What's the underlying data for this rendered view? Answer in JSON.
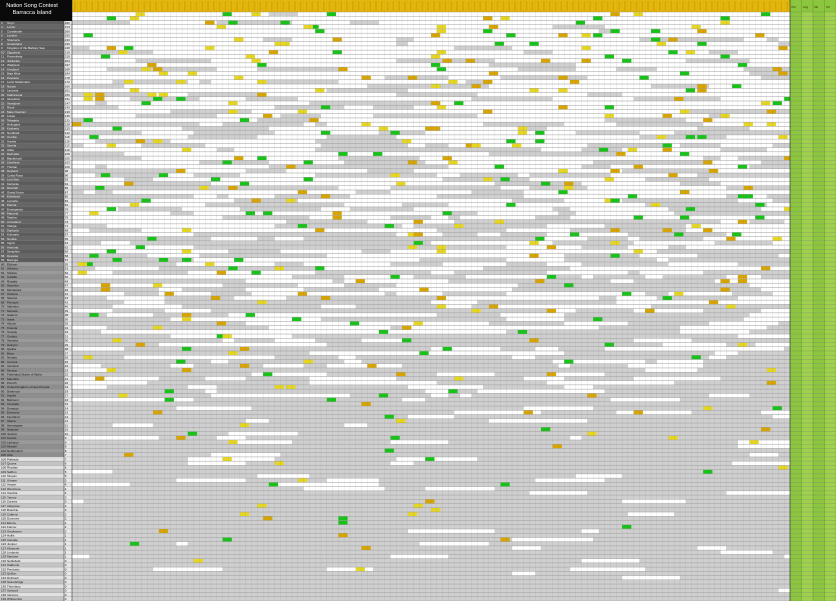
{
  "title": {
    "line1": "Nation Song Contest",
    "line2": "Barracca Island"
  },
  "header_corner": "",
  "colors": {
    "header_gold": "#e7b80c",
    "header_gold_dark": "#c99a00",
    "rank_gold": "#d7a400",
    "rank_yellow": "#e6d61f",
    "rank_green": "#19c219",
    "totals_green": "#8cc63f",
    "row_dark": "#5c5c5c",
    "row_mid": "#8e8e8e",
    "row_light": "#c4c4c4",
    "row_pale": "#e1e1e1",
    "grid_line": "#6f6f6f"
  },
  "totals_columns": [
    "Pts",
    "Avg",
    "Rk",
    "Tot"
  ],
  "rows": [
    {
      "rank": "1",
      "name": "Gami",
      "score": "302"
    },
    {
      "rank": "2",
      "name": "Lumpus",
      "score": "297"
    },
    {
      "rank": "3",
      "name": "Teryn",
      "score": "282"
    },
    {
      "rank": "4",
      "name": "Lunbo",
      "score": "274"
    },
    {
      "rank": "5",
      "name": "Crowlander",
      "score": "266"
    },
    {
      "rank": "6",
      "name": "Lazeria",
      "score": "255"
    },
    {
      "rank": "7",
      "name": "Sharkeria",
      "score": "243"
    },
    {
      "rank": "8",
      "name": "Greiterland",
      "score": "236"
    },
    {
      "rank": "9",
      "name": "Kingdom of the Barbary Sea",
      "score": "228"
    },
    {
      "rank": "10",
      "name": "Ziggoland",
      "score": "219"
    },
    {
      "rank": "11",
      "name": "Prometheia",
      "score": "210"
    },
    {
      "rank": "12",
      "name": "Jubilantia",
      "score": "203"
    },
    {
      "rank": "13",
      "name": "Wadjonia",
      "score": "197"
    },
    {
      "rank": "14",
      "name": "Amyland",
      "score": "189"
    },
    {
      "rank": "15",
      "name": "Baja Mina",
      "score": "184"
    },
    {
      "rank": "16",
      "name": "Pescaria",
      "score": "178"
    },
    {
      "rank": "17",
      "name": "Lovis Stollamaria",
      "score": "172"
    },
    {
      "rank": "18",
      "name": "Nanza",
      "score": "166"
    },
    {
      "rank": "19",
      "name": "Lantovia",
      "score": "161"
    },
    {
      "rank": "20",
      "name": "Kadranovia",
      "score": "156"
    },
    {
      "rank": "21",
      "name": "Ainedoria",
      "score": "151"
    },
    {
      "rank": "22",
      "name": "Vazadyne",
      "score": "147"
    },
    {
      "rank": "23",
      "name": "Rivoli",
      "score": "143"
    },
    {
      "rank": "24",
      "name": "Mare Nostrum",
      "score": "139"
    },
    {
      "rank": "25",
      "name": "Lukas",
      "score": "135"
    },
    {
      "rank": "26",
      "name": "Teiwatria",
      "score": "131"
    },
    {
      "rank": "27",
      "name": "Holmgard",
      "score": "128"
    },
    {
      "rank": "28",
      "name": "Kosheria",
      "score": "125"
    },
    {
      "rank": "29",
      "name": "Nordkraft",
      "score": "122"
    },
    {
      "rank": "30",
      "name": "Cerulia",
      "score": "119"
    },
    {
      "rank": "31",
      "name": "Aurelis",
      "score": "116"
    },
    {
      "rank": "32",
      "name": "Saviria",
      "score": "113"
    },
    {
      "rank": "33",
      "name": "Oikia",
      "score": "110"
    },
    {
      "rank": "34",
      "name": "Dalmatia",
      "score": "108"
    },
    {
      "rank": "35",
      "name": "Blackbrook",
      "score": "105"
    },
    {
      "rank": "36",
      "name": "Liberland",
      "score": "103"
    },
    {
      "rank": "37",
      "name": "Thorian",
      "score": "100"
    },
    {
      "rank": "38",
      "name": "Heyland",
      "score": "98"
    },
    {
      "rank": "39",
      "name": "Costa Rosa",
      "score": "96"
    },
    {
      "rank": "40",
      "name": "Lost Sea",
      "score": "93"
    },
    {
      "rank": "41",
      "name": "Karzania",
      "score": "91"
    },
    {
      "rank": "42",
      "name": "Riverfell",
      "score": "89"
    },
    {
      "rank": "43",
      "name": "Grand Union",
      "score": "87"
    },
    {
      "rank": "44",
      "name": "Ethelwold",
      "score": "85"
    },
    {
      "rank": "45",
      "name": "Lumeria",
      "score": "83"
    },
    {
      "rank": "46",
      "name": "Peluria",
      "score": "81"
    },
    {
      "rank": "47",
      "name": "Emergensis",
      "score": "79"
    },
    {
      "rank": "48",
      "name": "Mazovia",
      "score": "77"
    },
    {
      "rank": "49",
      "name": "Tsarina",
      "score": "75"
    },
    {
      "rank": "50",
      "name": "Arrowland",
      "score": "73"
    },
    {
      "rank": "51",
      "name": "Vitarga",
      "score": "71"
    },
    {
      "rank": "52",
      "name": "Zephyria",
      "score": "69"
    },
    {
      "rank": "53",
      "name": "Kulmaria",
      "score": "67"
    },
    {
      "rank": "54",
      "name": "Norelia",
      "score": "65"
    },
    {
      "rank": "55",
      "name": "Ingrid",
      "score": "64"
    },
    {
      "rank": "56",
      "name": "Anmoria",
      "score": "62"
    },
    {
      "rank": "57",
      "name": "Seraphim",
      "score": "60"
    },
    {
      "rank": "58",
      "name": "Dovania",
      "score": "58"
    },
    {
      "rank": "59",
      "name": "Beringia",
      "score": "57"
    },
    {
      "rank": "60",
      "name": "Eldoran",
      "score": "55"
    },
    {
      "rank": "61",
      "name": "Wilderia",
      "score": "53"
    },
    {
      "rank": "62",
      "name": "Tokaria",
      "score": "52"
    },
    {
      "rank": "63",
      "name": "Castilla",
      "score": "50"
    },
    {
      "rank": "64",
      "name": "Rosalia",
      "score": "49"
    },
    {
      "rank": "65",
      "name": "Hyperion",
      "score": "47"
    },
    {
      "rank": "66",
      "name": "Montanara",
      "score": "46"
    },
    {
      "rank": "67",
      "name": "Ostrava",
      "score": "44"
    },
    {
      "rank": "68",
      "name": "Selenia",
      "score": "43"
    },
    {
      "rank": "69",
      "name": "Pinnacle",
      "score": "42"
    },
    {
      "rank": "70",
      "name": "Valendor",
      "score": "40"
    },
    {
      "rank": "71",
      "name": "Moravia",
      "score": "39"
    },
    {
      "rank": "72",
      "name": "Galenor",
      "score": "38"
    },
    {
      "rank": "73",
      "name": "Isaria",
      "score": "36"
    },
    {
      "rank": "74",
      "name": "Alcora",
      "score": "35"
    },
    {
      "rank": "75",
      "name": "Krasnia",
      "score": "34"
    },
    {
      "rank": "76",
      "name": "Tessaly",
      "score": "33"
    },
    {
      "rank": "77",
      "name": "Ombria",
      "score": "31"
    },
    {
      "rank": "78",
      "name": "Venatria",
      "score": "30"
    },
    {
      "rank": "79",
      "name": "Halcyon",
      "score": "29"
    },
    {
      "rank": "80",
      "name": "Qadira",
      "score": "28"
    },
    {
      "rank": "81",
      "name": "Brisa",
      "score": "27"
    },
    {
      "rank": "82",
      "name": "Nerada",
      "score": "26"
    },
    {
      "rank": "83",
      "name": "Corvina",
      "score": "25"
    },
    {
      "rank": "84",
      "name": "Solvania",
      "score": "24"
    },
    {
      "rank": "85",
      "name": "Taurica",
      "score": "23"
    },
    {
      "rank": "86",
      "name": "Federated States of Alpha",
      "score": "22"
    },
    {
      "rank": "87",
      "name": "Maurelia",
      "score": "21"
    },
    {
      "rank": "88",
      "name": "Penrith",
      "score": "20"
    },
    {
      "rank": "89",
      "name": "United Kingdom of New Prussia",
      "score": "19"
    },
    {
      "rank": "90",
      "name": "Drakmoor",
      "score": "18"
    },
    {
      "rank": "91",
      "name": "Aquilia",
      "score": "17"
    },
    {
      "rank": "92",
      "name": "Bellmont",
      "score": "16"
    },
    {
      "rank": "93",
      "name": "Cressida",
      "score": "15"
    },
    {
      "rank": "94",
      "name": "Durango",
      "score": "14"
    },
    {
      "rank": "95",
      "name": "Everwind",
      "score": "13"
    },
    {
      "rank": "96",
      "name": "Fjordland",
      "score": "12"
    },
    {
      "rank": "97",
      "name": "Glacia",
      "score": "12"
    },
    {
      "rank": "98",
      "name": "Harrowgate",
      "score": "11"
    },
    {
      "rank": "99",
      "name": "Iskander",
      "score": "10"
    },
    {
      "rank": "100",
      "name": "Jovana",
      "score": "10"
    },
    {
      "rank": "101",
      "name": "Kestrel",
      "score": "9"
    },
    {
      "rank": "102",
      "name": "Larkspur",
      "score": "9"
    },
    {
      "rank": "103",
      "name": "Mirabel",
      "score": "8"
    },
    {
      "rank": "104",
      "name": "Northmarch",
      "score": "8"
    },
    {
      "rank": "105",
      "name": "Orla",
      "score": "7"
    },
    {
      "rank": "106",
      "name": "Palisade",
      "score": "7"
    },
    {
      "rank": "107",
      "name": "Quorra",
      "score": "6"
    },
    {
      "rank": "108",
      "name": "Rhydian",
      "score": "6"
    },
    {
      "rank": "109",
      "name": "Saffron",
      "score": "5"
    },
    {
      "rank": "110",
      "name": "Tarquin",
      "score": "5"
    },
    {
      "rank": "111",
      "name": "Ulmara",
      "score": "5"
    },
    {
      "rank": "112",
      "name": "Vesper",
      "score": "4"
    },
    {
      "rank": "113",
      "name": "Westmere",
      "score": "4"
    },
    {
      "rank": "114",
      "name": "Xandria",
      "score": "4"
    },
    {
      "rank": "115",
      "name": "Yarrow",
      "score": "3"
    },
    {
      "rank": "116",
      "name": "Zoravia",
      "score": "3"
    },
    {
      "rank": "117",
      "name": "Ashgrove",
      "score": "3"
    },
    {
      "rank": "118",
      "name": "Bramble",
      "score": "3"
    },
    {
      "rank": "119",
      "name": "Caldera",
      "score": "2"
    },
    {
      "rank": "120",
      "name": "Dunmore",
      "score": "2"
    },
    {
      "rank": "121",
      "name": "Elmira",
      "score": "2"
    },
    {
      "rank": "122",
      "name": "Farrow",
      "score": "2"
    },
    {
      "rank": "123",
      "name": "Greyhaven",
      "score": "2"
    },
    {
      "rank": "124",
      "name": "Hollis",
      "score": "1"
    },
    {
      "rank": "125",
      "name": "Ironvale",
      "score": "1"
    },
    {
      "rank": "126",
      "name": "Juniper",
      "score": "1"
    },
    {
      "rank": "127",
      "name": "Kilnworth",
      "score": "1"
    },
    {
      "rank": "128",
      "name": "Lindqvist",
      "score": "1"
    },
    {
      "rank": "129",
      "name": "Marlowe",
      "score": "1"
    },
    {
      "rank": "130",
      "name": "Nettlefield",
      "score": "0"
    },
    {
      "rank": "131",
      "name": "Oakhurst",
      "score": "0"
    },
    {
      "rank": "132",
      "name": "Pemberly",
      "score": "0"
    },
    {
      "rank": "133",
      "name": "Quillon",
      "score": "0"
    },
    {
      "rank": "134",
      "name": "Rothwell",
      "score": "0"
    },
    {
      "rank": "135",
      "name": "Stonebridge",
      "score": "0"
    },
    {
      "rank": "136",
      "name": "Thornbury",
      "score": "0"
    },
    {
      "rank": "137",
      "name": "Upwood",
      "score": "0"
    },
    {
      "rank": "138",
      "name": "Vantorre",
      "score": "0"
    },
    {
      "rank": "139",
      "name": "Whitcombe",
      "score": "0"
    }
  ]
}
